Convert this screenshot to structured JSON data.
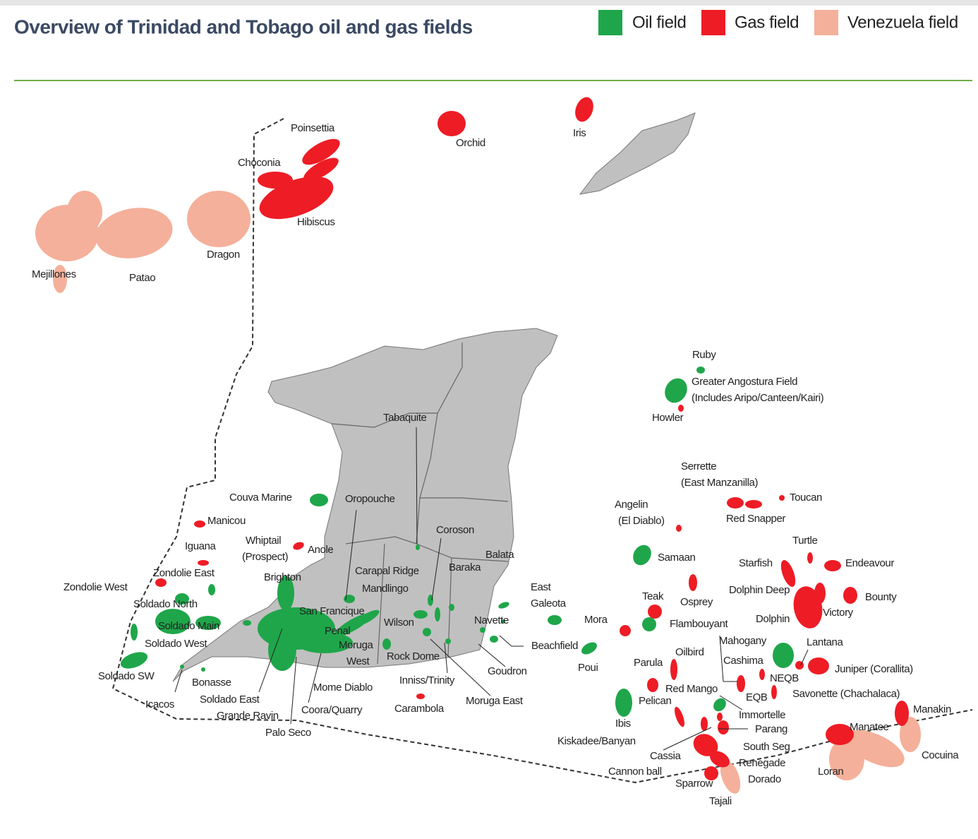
{
  "title": "Overview of Trinidad and Tobago oil and gas fields",
  "legend": [
    {
      "label": "Oil field",
      "color": "#1fa64a"
    },
    {
      "label": "Gas field",
      "color": "#ee1c25"
    },
    {
      "label": "Venezuela field",
      "color": "#f4b09a"
    }
  ],
  "labels": [
    "Poinsettia",
    "Choconia",
    "Hibiscus",
    "Orchid",
    "Iris",
    "Mejillones",
    "Patao",
    "Dragon",
    "Ruby",
    "Greater Angostura Field",
    "(Includes Aripo/Canteen/Kairi)",
    "Howler",
    "Tabaquite",
    "Serrette",
    "(East Manzanilla)",
    "Angelin",
    "(El Diablo)",
    "Toucan",
    "Red Snapper",
    "Couva Marine",
    "Oropouche",
    "Manicou",
    "Whiptail",
    "(Prospect)",
    "Anole",
    "Iguana",
    "Coroson",
    "Turtle",
    "Samaan",
    "Balata",
    "Starfish",
    "Endeavour",
    "Zondolie East",
    "Baraka",
    "Carapal Ridge",
    "Zondolie West",
    "Brighton",
    "East",
    "Galeota",
    "Mandlingo",
    "Dolphin Deep",
    "Bounty",
    "Teak",
    "Osprey",
    "Soldado North",
    "San Francique",
    "Navette",
    "Mora",
    "Victory",
    "Dolphin",
    "Flambouyant",
    "Soldado Main",
    "Wilson",
    "Penal",
    "Mahogany",
    "Lantana",
    "Soldado West",
    "Moruga",
    "Beachfield",
    "West",
    "Rock Dome",
    "Oilbird",
    "Cashima",
    "Parula",
    "Poui",
    "Goudron",
    "Juniper (Corallita)",
    "Soldado SW",
    "NEQB",
    "Inniss/Trinity",
    "Bonasse",
    "Mome Diablo",
    "Red Mango",
    "Savonette (Chachalaca)",
    "EQB",
    "Soldado East",
    "Pelican",
    "Moruga East",
    "Icacos",
    "Carambola",
    "Coora/Quarry",
    "Manakin",
    "Immortelle",
    "Grande Ravin",
    "Ibis",
    "Manatee",
    "Parang",
    "Palo Seco",
    "Kiskadee/Banyan",
    "South Seg",
    "Cassia",
    "Cocuina",
    "Renegade",
    "Cannon ball",
    "Loran",
    "Dorado",
    "Sparrow",
    "Tajali"
  ]
}
